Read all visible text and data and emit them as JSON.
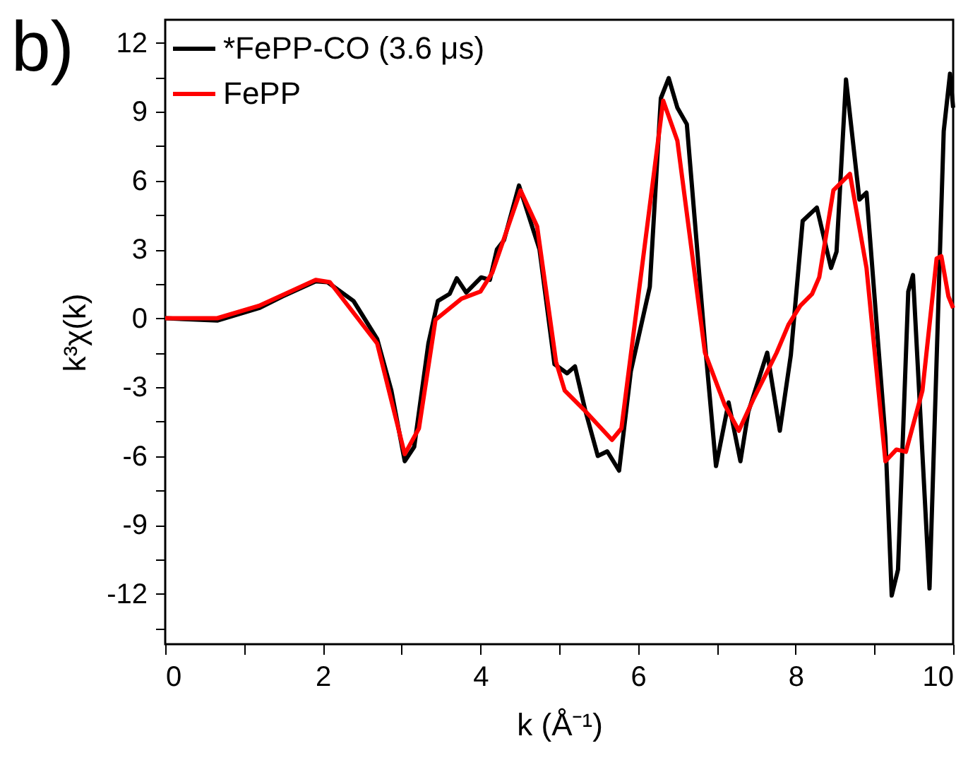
{
  "chart_data": {
    "type": "line",
    "xlabel": "k (Å⁻¹)",
    "ylabel": "k³χ(k)",
    "annotations": [
      "b)"
    ],
    "xlim": [
      0,
      10
    ],
    "ylim": [
      -14.2,
      13
    ],
    "xticks": [
      0,
      {
        "value": 1,
        "label": null
      },
      2,
      {
        "value": 3,
        "label": null
      },
      4,
      {
        "value": 5,
        "label": null
      },
      6,
      {
        "value": 7,
        "label": null
      },
      8,
      {
        "value": 9,
        "label": null
      },
      10
    ],
    "yticks": [
      {
        "value": -13.5,
        "label": null
      },
      -12,
      {
        "value": -10.5,
        "label": null
      },
      -9,
      {
        "value": -7.5,
        "label": null
      },
      -6,
      {
        "value": -4.5,
        "label": null
      },
      -3,
      {
        "value": -1.5,
        "label": null
      },
      0,
      {
        "value": 1.5,
        "label": null
      },
      3,
      {
        "value": 4.5,
        "label": null
      },
      6,
      {
        "value": 7.5,
        "label": null
      },
      9,
      {
        "value": 10.5,
        "label": null
      },
      12
    ],
    "legend": "top left",
    "grid": false,
    "line_style": "solid",
    "series": [
      {
        "name": "*FePP-CO (3.6 μs)",
        "color": "#000000",
        "x": [
          0,
          0.66,
          1.19,
          1.49,
          1.91,
          2.06,
          2.39,
          2.69,
          2.87,
          3.04,
          3.16,
          3.34,
          3.46,
          3.61,
          3.7,
          3.82,
          4.01,
          4.12,
          4.21,
          4.3,
          4.49,
          4.75,
          4.94,
          5.1,
          5.2,
          5.33,
          5.49,
          5.61,
          5.76,
          5.91,
          6.15,
          6.29,
          6.39,
          6.5,
          6.62,
          6.85,
          6.99,
          7.15,
          7.3,
          7.4,
          7.64,
          7.8,
          7.94,
          8.09,
          8.27,
          8.45,
          8.52,
          8.64,
          8.81,
          8.9,
          9.14,
          9.22,
          9.3,
          9.43,
          9.49,
          9.7,
          9.88,
          9.96,
          10
        ],
        "values": [
          0,
          -0.1,
          0.44,
          0.95,
          1.61,
          1.57,
          0.75,
          -0.9,
          -3.15,
          -6.23,
          -5.6,
          -1.1,
          0.75,
          1.06,
          1.74,
          1.12,
          1.78,
          1.67,
          3,
          3.4,
          5.78,
          3,
          -2,
          -2.4,
          -2.1,
          -4,
          -6,
          -5.8,
          -6.64,
          -2.3,
          1.37,
          9.58,
          10.46,
          9.17,
          8.45,
          -1.1,
          -6.44,
          -3.67,
          -6.23,
          -4.08,
          -1.5,
          -4.9,
          -1.6,
          4.24,
          4.82,
          2.19,
          2.9,
          10.4,
          5.17,
          5.47,
          -5.2,
          -12.08,
          -10.95,
          1.16,
          1.88,
          -11.77,
          8.14,
          10.65,
          9.17
        ]
      },
      {
        "name": "FePP",
        "color": "#ff0000",
        "x": [
          0,
          0.66,
          1.19,
          1.91,
          2.09,
          2.69,
          3.04,
          3.22,
          3.43,
          3.76,
          4,
          4.15,
          4.51,
          4.72,
          4.96,
          5.07,
          5.31,
          5.67,
          5.79,
          6.32,
          6.5,
          6.85,
          7.1,
          7.28,
          7.46,
          7.76,
          7.91,
          8.06,
          8.21,
          8.3,
          8.48,
          8.69,
          8.9,
          9.14,
          9.28,
          9.4,
          9.61,
          9.79,
          9.85,
          9.94,
          10
        ],
        "values": [
          0,
          0,
          0.54,
          1.67,
          1.57,
          -1.1,
          -5.92,
          -4.8,
          -0.07,
          0.85,
          1.16,
          1.98,
          5.57,
          4,
          -1.9,
          -3.15,
          -3.97,
          -5.3,
          -4.8,
          9.48,
          7.73,
          -1.5,
          -3.77,
          -4.9,
          -3.56,
          -1.5,
          -0.28,
          0.54,
          1.06,
          1.78,
          5.57,
          6.29,
          2.19,
          -6.23,
          -5.72,
          -5.82,
          -3.15,
          2.6,
          2.7,
          0.95,
          0.44
        ]
      }
    ]
  }
}
